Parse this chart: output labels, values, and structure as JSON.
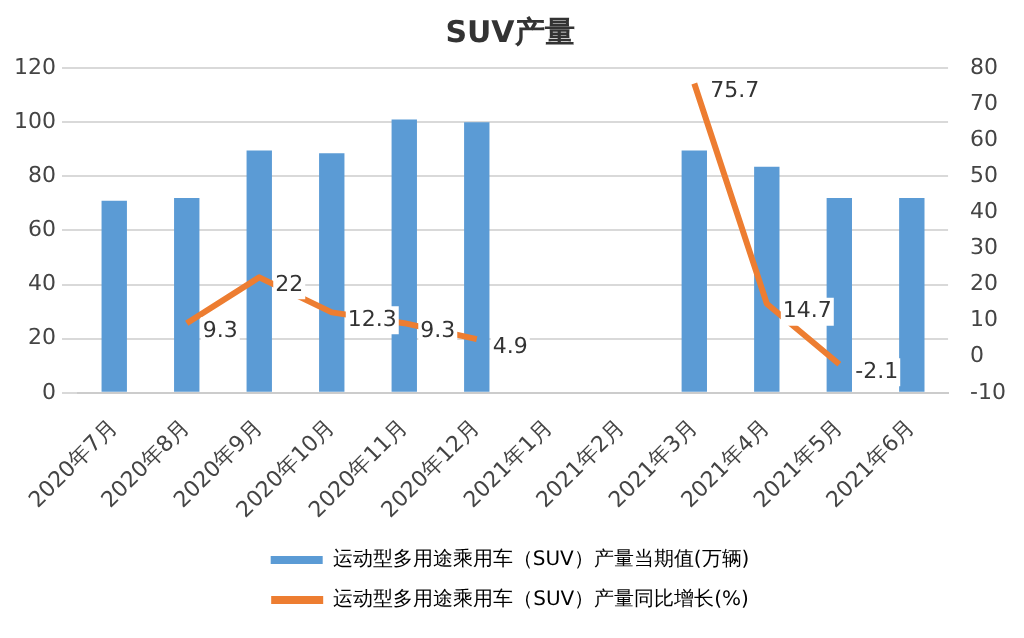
{
  "chart_data": {
    "type": "bar",
    "title": "SUV产量",
    "categories": [
      "2020年7月",
      "2020年8月",
      "2020年9月",
      "2020年10月",
      "2020年11月",
      "2020年12月",
      "2021年1月",
      "2021年2月",
      "2021年3月",
      "2021年4月",
      "2021年5月",
      "2021年6月"
    ],
    "series": [
      {
        "name": "运动型多用途乘用车（SUV）产量当期值(万辆)",
        "color": "#5b9bd5",
        "values": [
          71,
          72,
          89.5,
          88.5,
          101,
          100,
          null,
          null,
          89.5,
          83.5,
          72,
          72
        ]
      },
      {
        "name": "运动型多用途乘用车（SUV）产量同比增长(%)",
        "type": "line",
        "axis": "y2",
        "color": "#ed7d31",
        "values": [
          null,
          9.3,
          22,
          12.3,
          9.3,
          4.9,
          null,
          null,
          75.7,
          14.7,
          -2.1,
          null
        ],
        "value_labels": [
          null,
          "9.3",
          "22",
          "12.3",
          "9.3",
          "4.9",
          null,
          null,
          "75.7",
          "14.7",
          "-2.1",
          null
        ]
      }
    ],
    "ylim": [
      0,
      120
    ],
    "yticks": [
      0,
      20,
      40,
      60,
      80,
      100,
      120
    ],
    "y2lim": [
      -10,
      80
    ],
    "y2ticks": [
      -10,
      0,
      10,
      20,
      30,
      40,
      50,
      60,
      70,
      80
    ],
    "grid": "y",
    "legend": "bottom",
    "marker": "none"
  }
}
